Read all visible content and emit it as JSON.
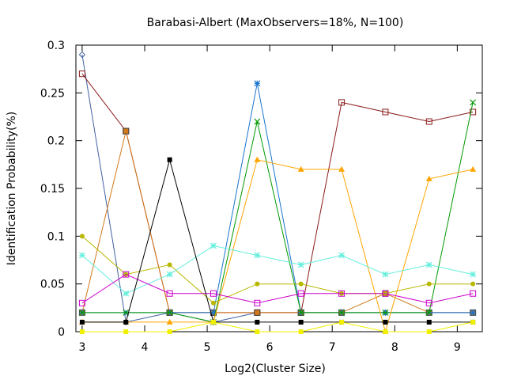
{
  "chart_data": {
    "type": "line",
    "title": "Barabasi-Albert (MaxObservers=18%, N=100)",
    "xlabel": "Log2(Cluster Size)",
    "ylabel": "Identification Probability(%)",
    "xlim": [
      2.9,
      9.4
    ],
    "ylim": [
      0,
      0.3
    ],
    "xticks": [
      "3",
      "4",
      "5",
      "6",
      "7",
      "8",
      "9"
    ],
    "yticks": [
      "0",
      "0.05",
      "0.1",
      "0.15",
      "0.2",
      "0.25",
      "0.3"
    ],
    "grid": false,
    "x": [
      3.0,
      3.7,
      4.4,
      5.1,
      5.8,
      6.5,
      7.15,
      7.85,
      8.55,
      9.25
    ],
    "series": [
      {
        "color": "#4060a0",
        "marker": "diamond",
        "values": [
          0.29,
          0.01,
          0.02,
          0.01,
          0.02,
          0.02,
          0.02,
          0.02,
          0.02,
          0.02
        ]
      },
      {
        "color": "#8b1a1a",
        "marker": "square-open",
        "values": [
          0.27,
          0.21,
          0.02,
          0.02,
          0.02,
          0.02,
          0.24,
          0.23,
          0.22,
          0.23
        ]
      },
      {
        "color": "#d27819",
        "marker": "square-filled",
        "values": [
          0.02,
          0.21,
          0.02,
          0.02,
          0.02,
          0.02,
          0.02,
          0.04,
          0.02,
          0.02
        ]
      },
      {
        "color": "#1874cd",
        "marker": "star",
        "values": [
          0.02,
          0.02,
          0.02,
          0.02,
          0.26,
          0.02,
          0.02,
          0.02,
          0.02,
          0.02
        ]
      },
      {
        "color": "#009900",
        "marker": "cross",
        "values": [
          0.02,
          0.02,
          0.02,
          0.01,
          0.22,
          0.02,
          0.02,
          0.02,
          0.02,
          0.24
        ]
      },
      {
        "color": "#ffa500",
        "marker": "triangle",
        "values": [
          0.01,
          0.01,
          0.01,
          0.01,
          0.18,
          0.17,
          0.17,
          0.0,
          0.16,
          0.17
        ]
      },
      {
        "color": "#b8b800",
        "marker": "circle",
        "values": [
          0.1,
          0.06,
          0.07,
          0.03,
          0.05,
          0.05,
          0.04,
          0.04,
          0.05,
          0.05
        ]
      },
      {
        "color": "#66eedd",
        "marker": "star",
        "values": [
          0.08,
          0.04,
          0.06,
          0.09,
          0.08,
          0.07,
          0.08,
          0.06,
          0.07,
          0.06
        ]
      },
      {
        "color": "#cc00cc",
        "marker": "square-open",
        "values": [
          0.03,
          0.06,
          0.04,
          0.04,
          0.03,
          0.04,
          0.04,
          0.04,
          0.03,
          0.04
        ]
      },
      {
        "color": "#000000",
        "marker": "filled-box",
        "values": [
          0.01,
          0.01,
          0.18,
          0.01,
          0.01,
          0.01,
          0.01,
          0.01,
          0.01,
          0.01
        ]
      },
      {
        "color": "#f0f000",
        "marker": "filled-box",
        "values": [
          0.0,
          0.0,
          0.0,
          0.01,
          0.0,
          0.0,
          0.01,
          0.0,
          0.0,
          0.01
        ]
      }
    ]
  }
}
